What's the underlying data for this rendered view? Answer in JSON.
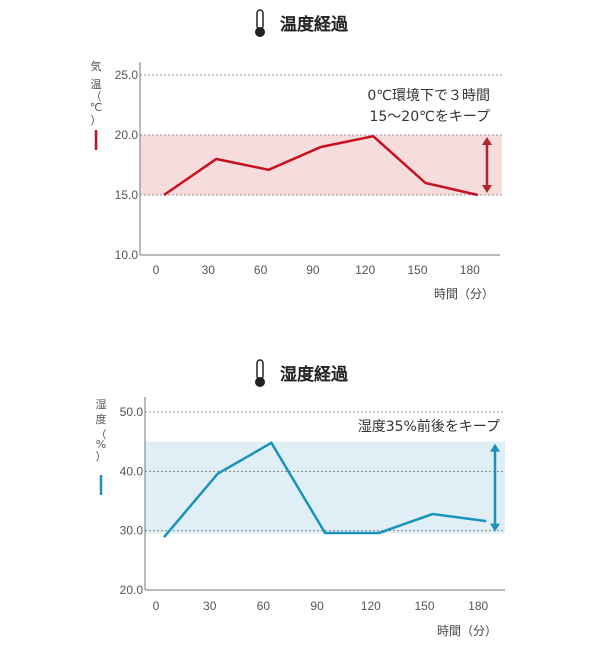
{
  "chart_data": [
    {
      "type": "line",
      "title": "温度経過",
      "ylabel": [
        "気",
        "温",
        "（",
        "℃",
        "）"
      ],
      "xlabel": "時間（分）",
      "x": [
        0,
        30,
        60,
        90,
        120,
        150,
        180
      ],
      "x_ticks": [
        "0",
        "30",
        "60",
        "90",
        "120",
        "150",
        "180"
      ],
      "values": [
        15,
        18,
        17.1,
        19,
        19.9,
        16,
        15
      ],
      "ylim": [
        10,
        25
      ],
      "y_ticks": [
        "10.0",
        "15.0",
        "20.0",
        "25.0"
      ],
      "y_tick_values": [
        10,
        15,
        20,
        25
      ],
      "band": [
        15,
        20
      ],
      "annotation": [
        "0℃環境下で３時間",
        "15～20℃をキープ"
      ],
      "line_color": "#c8101e",
      "band_color": "#f6dcdc",
      "arrow_color": "#b3262d",
      "grid": "dashed horizontal"
    },
    {
      "type": "line",
      "title": "湿度経過",
      "ylabel": [
        "湿",
        "度",
        "（",
        "%",
        "）"
      ],
      "xlabel": "時間（分）",
      "x": [
        0,
        30,
        60,
        90,
        120,
        150,
        180
      ],
      "x_ticks": [
        "0",
        "30",
        "60",
        "90",
        "120",
        "150",
        "180"
      ],
      "values": [
        28.9,
        39.6,
        44.8,
        29.6,
        29.6,
        32.8,
        31.6
      ],
      "ylim": [
        20,
        50
      ],
      "y_ticks": [
        "20.0",
        "30.0",
        "40.0",
        "50.0"
      ],
      "y_tick_values": [
        20,
        30,
        40,
        50
      ],
      "band": [
        29.5,
        45
      ],
      "annotation": [
        "湿度35%前後をキープ"
      ],
      "line_color": "#1a93bb",
      "band_color": "#e0eff5",
      "arrow_color": "#1a93bb",
      "grid": "dashed horizontal"
    }
  ]
}
